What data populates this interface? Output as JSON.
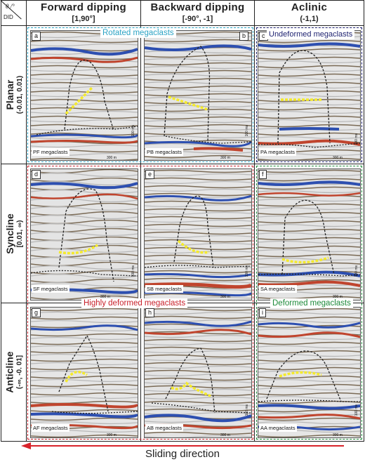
{
  "corner": {
    "theta_label": "θ /°",
    "did_label": "DID"
  },
  "columns": [
    {
      "title": "Forward dipping",
      "range": "[1,90°]"
    },
    {
      "title": "Backward dipping",
      "range": "[-90°, -1]"
    },
    {
      "title": "Aclinic",
      "range": "(-1,1)"
    }
  ],
  "rows": [
    {
      "title": "Planar",
      "range": "(-0.01, 0.01)"
    },
    {
      "title": "Syncline",
      "range": "[0.01, ∞)"
    },
    {
      "title": "Anticline",
      "range": "(-∞, -0. 01]"
    }
  ],
  "panels": [
    {
      "letter": "a",
      "name": "PF megaclasts"
    },
    {
      "letter": "b",
      "name": "PB megaclasts"
    },
    {
      "letter": "c",
      "name": "PA megaclasts"
    },
    {
      "letter": "d",
      "name": "SF megaclasts"
    },
    {
      "letter": "e",
      "name": "SB megaclasts"
    },
    {
      "letter": "f",
      "name": "SA megaclasts"
    },
    {
      "letter": "g",
      "name": "AF megaclasts"
    },
    {
      "letter": "h",
      "name": "AB megaclasts"
    },
    {
      "letter": "i",
      "name": "AA megaclasts"
    }
  ],
  "scale": {
    "horizontal": "300 m",
    "vertical": "100 ms"
  },
  "groups": {
    "rotated": "Rotated megaclasts",
    "undeformed": "Undeformed megaclasts",
    "highly_deformed": "Highly deformed megaclasts",
    "deformed": "Deformed megaclasts"
  },
  "arrow_label": "Sliding direction",
  "colors": {
    "rotated": "#2ba3c4",
    "undeformed": "#1b1f6e",
    "highly_deformed": "#c8202a",
    "deformed": "#1d8a3a",
    "arrow": "#d8232a",
    "outline": "#222222",
    "marker": "#f4ea2c"
  }
}
